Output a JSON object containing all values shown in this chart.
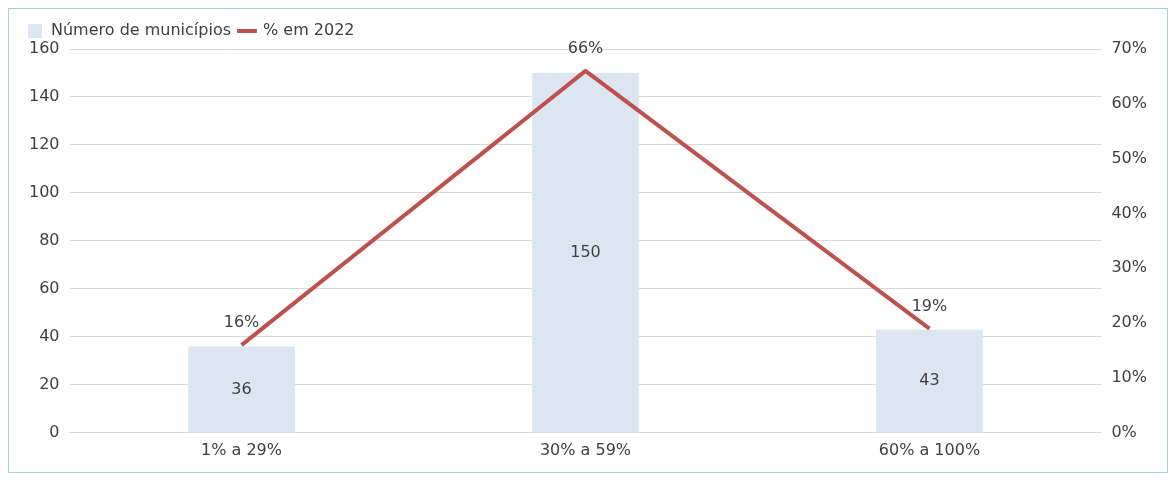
{
  "chart_data": {
    "type": "bar",
    "categories": [
      "1% a 29%",
      "30% a 59%",
      "60% a 100%"
    ],
    "series": [
      {
        "name": "Número de municípios",
        "color": "#dce6f2",
        "values": [
          36,
          150,
          43
        ],
        "value_labels": [
          "36",
          "150",
          "43"
        ]
      },
      {
        "name": "% em 2022",
        "type": "line",
        "axis": "y2",
        "color": "#c0504d",
        "values": [
          16,
          66,
          19
        ],
        "value_labels": [
          "16%",
          "66%",
          "19%"
        ],
        "marker": "none",
        "line_style": "solid"
      }
    ],
    "ylim": [
      0,
      160
    ],
    "yticks": [
      0,
      20,
      40,
      60,
      80,
      100,
      120,
      140,
      160
    ],
    "y2lim": [
      0,
      70
    ],
    "y2ticks": [
      {
        "value": 0,
        "label": "0%"
      },
      {
        "value": 10,
        "label": "10%"
      },
      {
        "value": 20,
        "label": "20%"
      },
      {
        "value": 30,
        "label": "30%"
      },
      {
        "value": 40,
        "label": "40%"
      },
      {
        "value": 50,
        "label": "50%"
      },
      {
        "value": 60,
        "label": "60%"
      },
      {
        "value": 70,
        "label": "70%"
      }
    ],
    "grid": "y",
    "legend": "top left"
  }
}
